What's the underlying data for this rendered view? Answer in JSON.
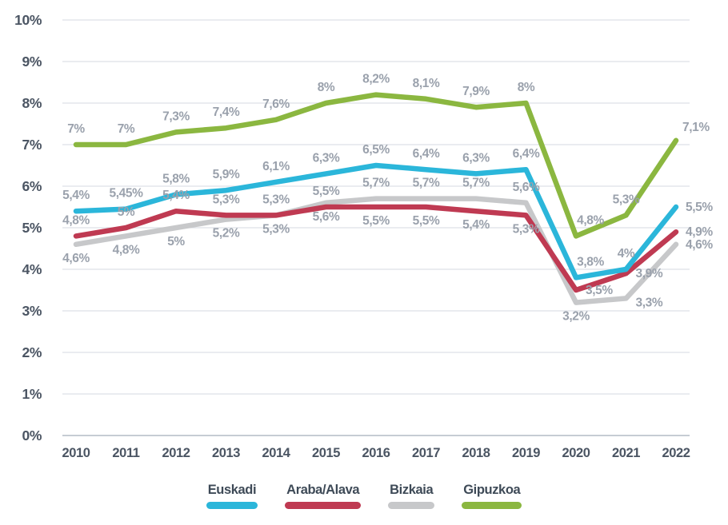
{
  "chart_data": {
    "type": "line",
    "x": [
      "2010",
      "2011",
      "2012",
      "2013",
      "2014",
      "2015",
      "2016",
      "2017",
      "2018",
      "2019",
      "2020",
      "2021",
      "2022"
    ],
    "y_axis": {
      "min": 0,
      "max": 10,
      "unit": "%",
      "tick_labels": [
        "0%",
        "1%",
        "2%",
        "3%",
        "4%",
        "5%",
        "6%",
        "7%",
        "8%",
        "9%",
        "10%"
      ],
      "grid": true
    },
    "series": [
      {
        "name": "Euskadi",
        "color": "#2bb6da",
        "values": [
          5.4,
          5.45,
          5.8,
          5.9,
          6.1,
          6.3,
          6.5,
          6.4,
          6.3,
          6.4,
          3.8,
          4,
          5.5
        ],
        "labels": [
          "5,4%",
          "5,45%",
          "5,8%",
          "5,9%",
          "6,1%",
          "6,3%",
          "6,5%",
          "6,4%",
          "6,3%",
          "6,4%",
          "3,8%",
          "4%",
          "5,5%"
        ],
        "label_pos": [
          "a",
          "a",
          "a",
          "a",
          "a",
          "a",
          "a",
          "a",
          "a",
          "a",
          "ar",
          "a",
          "r"
        ]
      },
      {
        "name": "Araba/Alava",
        "color": "#bf3a52",
        "values": [
          4.8,
          5,
          5.4,
          5.3,
          5.3,
          5.5,
          5.5,
          5.5,
          5.4,
          5.3,
          3.5,
          3.9,
          4.9
        ],
        "labels": [
          "4,8%",
          "5%",
          "5,4%",
          "5,3%",
          "5,3%",
          "5,5%",
          "5,5%",
          "5,5%",
          "5,4%",
          "5,3%",
          "3,5%",
          "3,9%",
          "4,9%"
        ],
        "label_pos": [
          "a",
          "a",
          "a",
          "a",
          "a",
          "a",
          "b",
          "b",
          "b",
          "b",
          "r",
          "r",
          "r"
        ]
      },
      {
        "name": "Bizkaia",
        "color": "#c7c8ca",
        "values": [
          4.6,
          4.8,
          5,
          5.2,
          5.3,
          5.6,
          5.7,
          5.7,
          5.7,
          5.6,
          3.2,
          3.3,
          4.6
        ],
        "labels": [
          "4,6%",
          "4,8%",
          "5%",
          "5,2%",
          "5,3%",
          "5,6%",
          "5,7%",
          "5,7%",
          "5,7%",
          "5,6%",
          "3,2%",
          "3,3%",
          "4,6%"
        ],
        "label_pos": [
          "b",
          "b",
          "b",
          "b",
          "b",
          "b",
          "a",
          "a",
          "a",
          "a",
          "b",
          "rb",
          "r"
        ]
      },
      {
        "name": "Gipuzkoa",
        "color": "#8bb740",
        "values": [
          7,
          7,
          7.3,
          7.4,
          7.6,
          8,
          8.2,
          8.1,
          7.9,
          8,
          4.8,
          5.3,
          7.1
        ],
        "labels": [
          "7%",
          "7%",
          "7,3%",
          "7,4%",
          "7,6%",
          "8%",
          "8,2%",
          "8,1%",
          "7,9%",
          "8%",
          "4,8%",
          "5,3%",
          "7,1%"
        ],
        "label_pos": [
          "a",
          "a",
          "a",
          "a",
          "a",
          "a",
          "a",
          "a",
          "a",
          "a",
          "ar",
          "a",
          "ra"
        ]
      }
    ],
    "legend": {
      "position": "bottom",
      "items": [
        "Euskadi",
        "Araba/Alava",
        "Bizkaia",
        "Gipuzkoa"
      ]
    },
    "colors": {
      "data_label": "#9aa1ac",
      "axis_label": "#4b5563",
      "legend_label": "#3e4a57",
      "gridline": "#dde1e6",
      "axis_line": "#c6ccd3",
      "background": "#ffffff"
    }
  }
}
